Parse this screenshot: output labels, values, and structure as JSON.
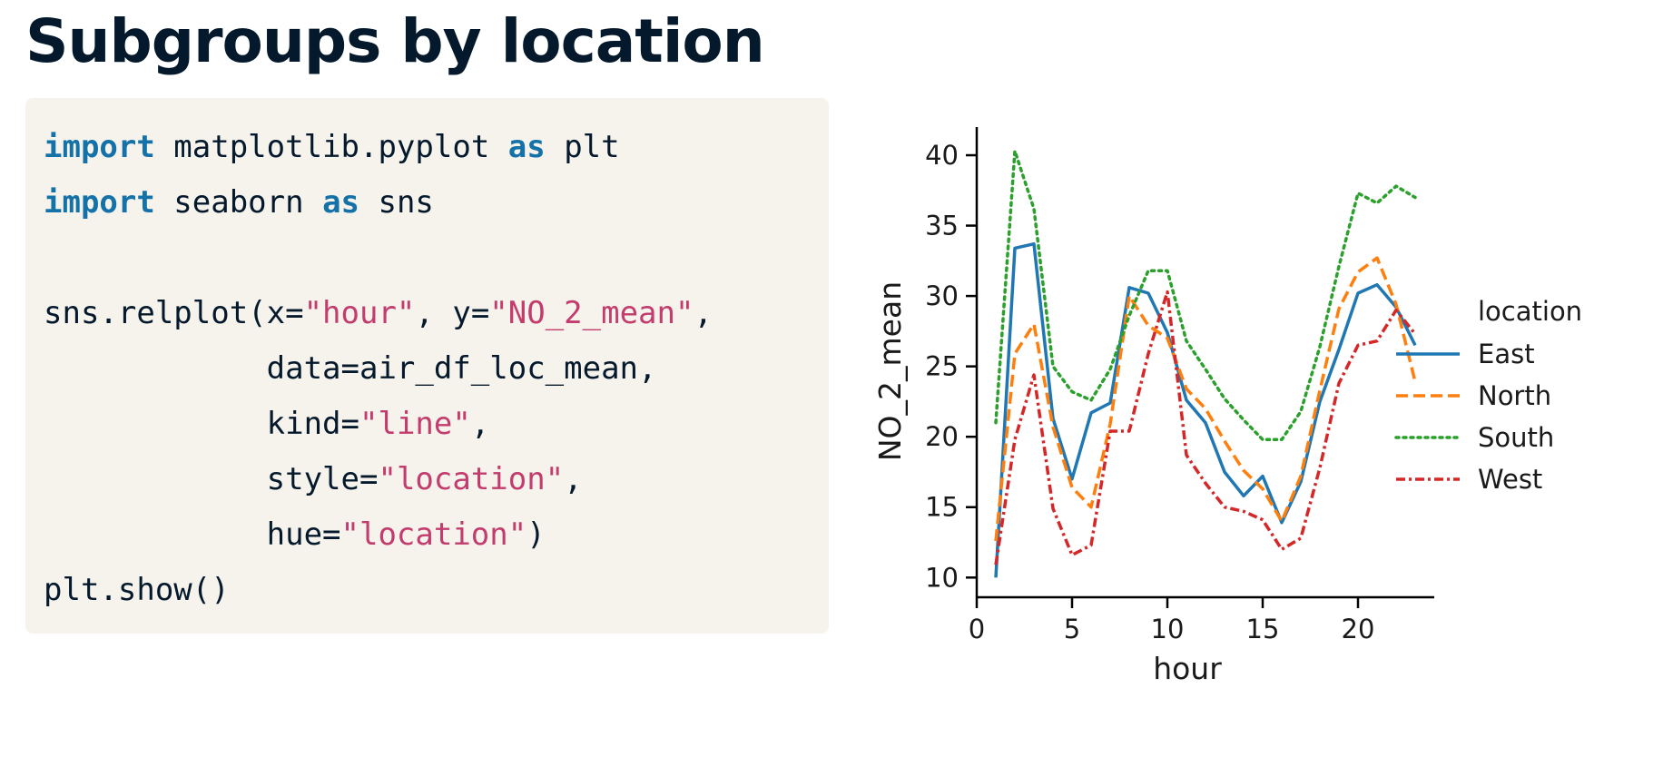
{
  "title": "Subgroups by location",
  "code": {
    "lines": [
      [
        {
          "t": "import",
          "c": "kw"
        },
        {
          "t": " matplotlib.pyplot "
        },
        {
          "t": "as",
          "c": "kw"
        },
        {
          "t": " plt"
        }
      ],
      [
        {
          "t": "import",
          "c": "kw"
        },
        {
          "t": " seaborn "
        },
        {
          "t": "as",
          "c": "kw"
        },
        {
          "t": " sns"
        }
      ],
      [],
      [
        {
          "t": "sns.relplot(x="
        },
        {
          "t": "\"hour\"",
          "c": "str"
        },
        {
          "t": ", y="
        },
        {
          "t": "\"NO_2_mean\"",
          "c": "str"
        },
        {
          "t": ","
        }
      ],
      [
        {
          "t": "            data=air_df_loc_mean,"
        }
      ],
      [
        {
          "t": "            kind="
        },
        {
          "t": "\"line\"",
          "c": "str"
        },
        {
          "t": ","
        }
      ],
      [
        {
          "t": "            style="
        },
        {
          "t": "\"location\"",
          "c": "str"
        },
        {
          "t": ","
        }
      ],
      [
        {
          "t": "            hue="
        },
        {
          "t": "\"location\"",
          "c": "str"
        },
        {
          "t": ")"
        }
      ],
      [
        {
          "t": "plt.show()"
        }
      ]
    ]
  },
  "chart_data": {
    "type": "line",
    "xlabel": "hour",
    "ylabel": "NO_2_mean",
    "xlim": [
      0,
      24
    ],
    "ylim": [
      8.6,
      42.0
    ],
    "xticks": [
      0,
      5,
      10,
      15,
      20
    ],
    "yticks": [
      10,
      15,
      20,
      25,
      30,
      35,
      40
    ],
    "grid": false,
    "legend": {
      "title": "location",
      "placement": "right"
    },
    "x": [
      1,
      2,
      3,
      4,
      5,
      6,
      7,
      8,
      9,
      10,
      11,
      12,
      13,
      14,
      15,
      16,
      17,
      18,
      19,
      20,
      21,
      22,
      23
    ],
    "series": [
      {
        "name": "East",
        "color": "#1f77b4",
        "dash": "solid",
        "values": [
          10.0,
          33.4,
          33.7,
          21.3,
          17.0,
          21.7,
          22.4,
          30.6,
          30.2,
          27.4,
          22.6,
          21.0,
          17.5,
          15.8,
          17.2,
          13.9,
          16.8,
          22.5,
          26.2,
          30.2,
          30.8,
          29.2,
          26.5
        ]
      },
      {
        "name": "North",
        "color": "#ff7f0e",
        "dash": "dashed",
        "values": [
          12.6,
          25.9,
          28.0,
          20.7,
          16.4,
          15.0,
          20.9,
          30.0,
          27.9,
          27.0,
          23.4,
          22.0,
          19.7,
          17.6,
          16.3,
          14.0,
          17.2,
          23.3,
          29.1,
          31.7,
          32.7,
          29.4,
          23.9
        ]
      },
      {
        "name": "South",
        "color": "#2ca02c",
        "dash": "dotted",
        "values": [
          21.0,
          40.3,
          36.2,
          25.0,
          23.2,
          22.6,
          24.8,
          28.6,
          31.8,
          31.8,
          26.8,
          24.8,
          22.7,
          21.2,
          19.8,
          19.8,
          21.8,
          26.4,
          32.1,
          37.3,
          36.6,
          37.8,
          37.0
        ]
      },
      {
        "name": "West",
        "color": "#d62728",
        "dash": "dashdot",
        "values": [
          10.9,
          19.8,
          24.4,
          14.9,
          11.6,
          12.3,
          20.4,
          20.4,
          25.9,
          30.3,
          18.7,
          16.7,
          15.0,
          14.7,
          14.1,
          12.0,
          12.8,
          17.8,
          23.8,
          26.5,
          26.8,
          29.0,
          27.3
        ]
      }
    ]
  }
}
